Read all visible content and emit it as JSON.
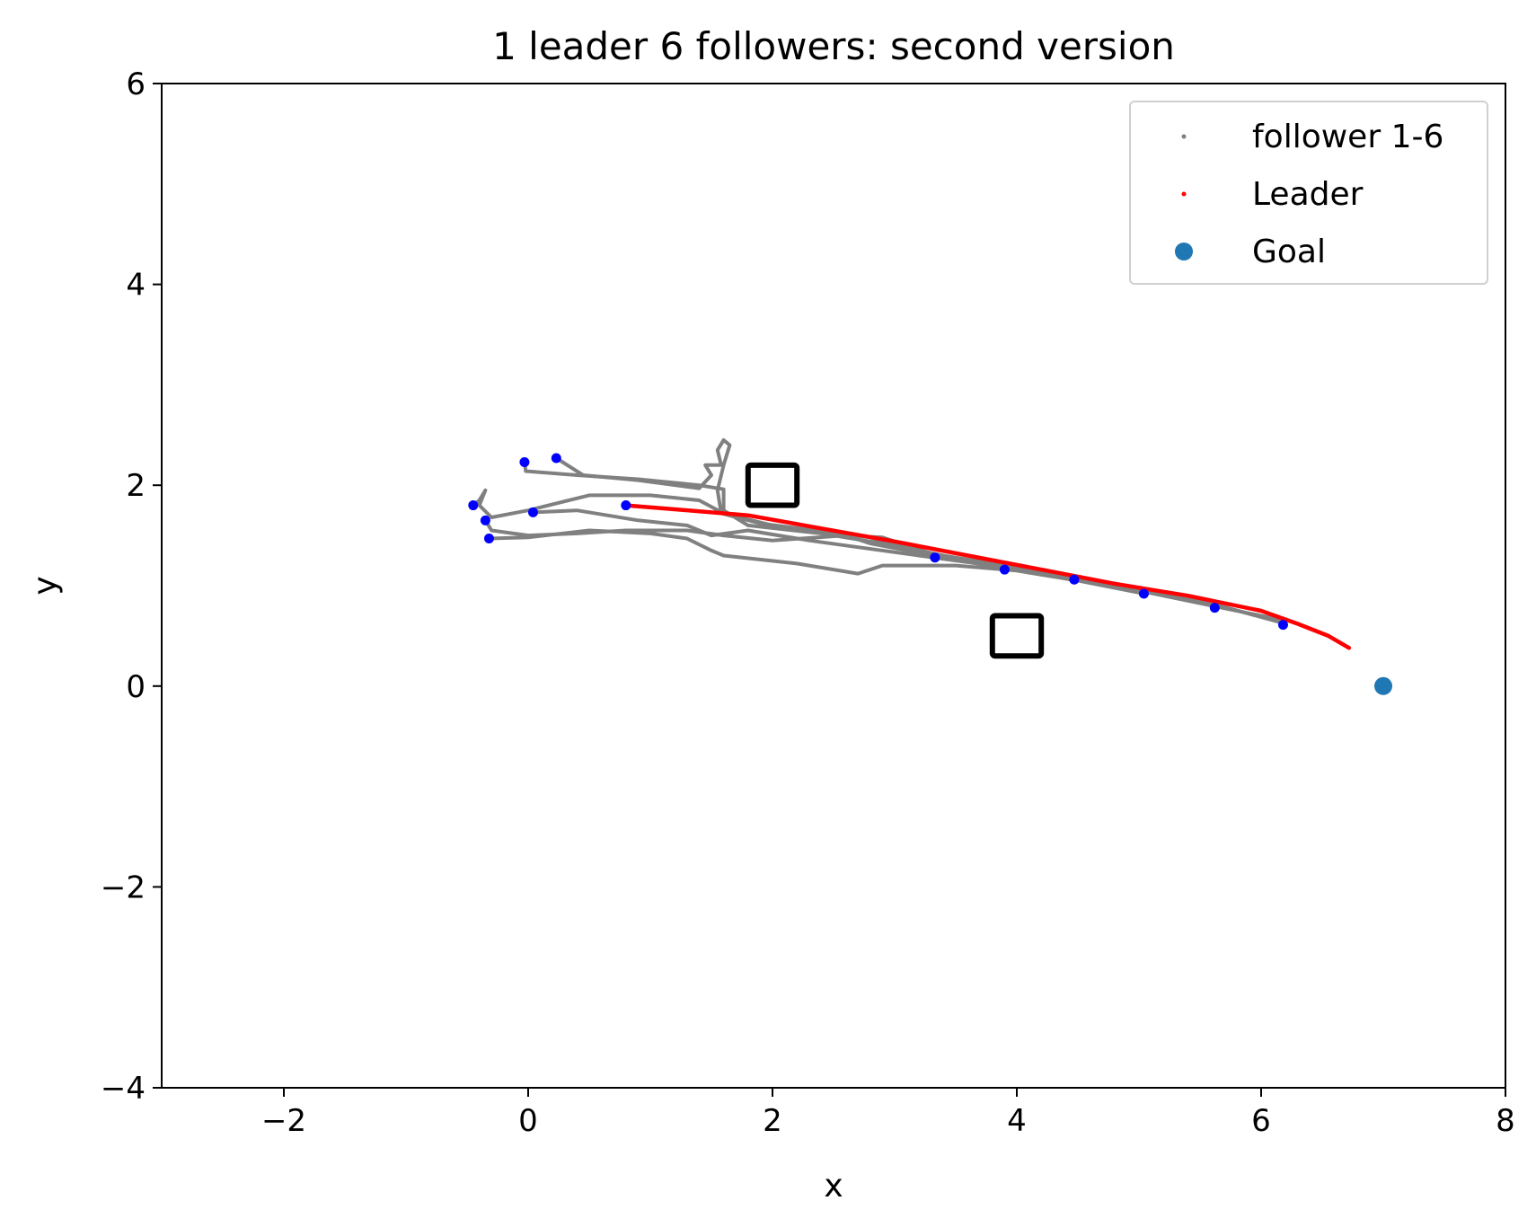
{
  "chart_data": {
    "type": "scatter",
    "title": "1 leader 6 followers: second version",
    "xlabel": "x",
    "ylabel": "y",
    "xlim": [
      -3,
      8
    ],
    "ylim": [
      -4,
      6
    ],
    "x_ticks": [
      -2,
      0,
      2,
      4,
      6,
      8
    ],
    "y_ticks": [
      -4,
      -2,
      0,
      2,
      4,
      6
    ],
    "x_tick_labels": [
      "−2",
      "0",
      "2",
      "4",
      "6",
      "8"
    ],
    "y_tick_labels": [
      "−4",
      "−2",
      "0",
      "2",
      "4",
      "6"
    ],
    "grid": false,
    "legend": {
      "position": "top-right",
      "entries": [
        {
          "label": "follower 1-6",
          "color": "#808080",
          "marker": "small-dot"
        },
        {
          "label": "Leader",
          "color": "#ff0000",
          "marker": "small-dot"
        },
        {
          "label": "Goal",
          "color": "#1f77b4",
          "marker": "circle"
        }
      ]
    },
    "series": [
      {
        "name": "Leader",
        "color": "#ff0000",
        "points": [
          [
            0.8,
            1.8
          ],
          [
            1.2,
            1.76
          ],
          [
            1.8,
            1.7
          ],
          [
            2.4,
            1.57
          ],
          [
            3.0,
            1.44
          ],
          [
            3.6,
            1.3
          ],
          [
            4.2,
            1.16
          ],
          [
            4.8,
            1.02
          ],
          [
            5.4,
            0.9
          ],
          [
            6.0,
            0.75
          ],
          [
            6.3,
            0.62
          ],
          [
            6.55,
            0.5
          ],
          [
            6.72,
            0.38
          ]
        ]
      },
      {
        "name": "follower 1-6",
        "color": "#808080",
        "paths": [
          [
            [
              -0.03,
              2.23
            ],
            [
              -0.02,
              2.14
            ],
            [
              0.4,
              2.1
            ],
            [
              0.9,
              2.06
            ],
            [
              1.4,
              2.0
            ],
            [
              1.6,
              1.96
            ],
            [
              1.6,
              1.75
            ],
            [
              1.8,
              1.6
            ],
            [
              2.4,
              1.52
            ],
            [
              3.0,
              1.4
            ],
            [
              3.4,
              1.3
            ],
            [
              3.9,
              1.2
            ],
            [
              4.5,
              1.08
            ],
            [
              5.0,
              0.95
            ],
            [
              5.6,
              0.8
            ],
            [
              6.2,
              0.65
            ]
          ],
          [
            [
              0.23,
              2.27
            ],
            [
              0.45,
              2.1
            ],
            [
              0.9,
              2.05
            ],
            [
              1.4,
              1.97
            ],
            [
              1.5,
              2.1
            ],
            [
              1.45,
              2.2
            ],
            [
              1.58,
              2.2
            ],
            [
              1.55,
              2.35
            ],
            [
              1.6,
              2.45
            ],
            [
              1.65,
              2.4
            ],
            [
              1.6,
              2.2
            ],
            [
              1.55,
              1.95
            ],
            [
              1.58,
              1.72
            ],
            [
              1.9,
              1.62
            ],
            [
              2.8,
              1.48
            ],
            [
              3.3,
              1.3
            ]
          ],
          [
            [
              -0.45,
              1.8
            ],
            [
              -0.4,
              1.85
            ],
            [
              -0.35,
              1.95
            ],
            [
              -0.4,
              1.8
            ],
            [
              -0.3,
              1.68
            ],
            [
              0.0,
              1.75
            ],
            [
              0.5,
              1.9
            ],
            [
              1.0,
              1.9
            ],
            [
              1.4,
              1.85
            ],
            [
              1.6,
              1.72
            ],
            [
              2.0,
              1.6
            ],
            [
              2.6,
              1.5
            ],
            [
              2.9,
              1.48
            ],
            [
              3.3,
              1.32
            ],
            [
              3.9,
              1.18
            ]
          ],
          [
            [
              -0.35,
              1.65
            ],
            [
              -0.3,
              1.55
            ],
            [
              0.0,
              1.5
            ],
            [
              0.4,
              1.52
            ],
            [
              0.8,
              1.55
            ],
            [
              1.3,
              1.55
            ],
            [
              1.6,
              1.5
            ],
            [
              2.0,
              1.45
            ],
            [
              2.6,
              1.5
            ],
            [
              2.8,
              1.42
            ],
            [
              3.4,
              1.28
            ],
            [
              3.9,
              1.17
            ],
            [
              4.5,
              1.05
            ]
          ],
          [
            [
              -0.32,
              1.47
            ],
            [
              0.0,
              1.48
            ],
            [
              0.5,
              1.55
            ],
            [
              1.0,
              1.52
            ],
            [
              1.3,
              1.47
            ],
            [
              1.5,
              1.35
            ],
            [
              1.6,
              1.3
            ],
            [
              2.2,
              1.22
            ],
            [
              2.7,
              1.12
            ],
            [
              2.9,
              1.2
            ],
            [
              3.5,
              1.2
            ],
            [
              4.0,
              1.15
            ],
            [
              4.5,
              1.05
            ],
            [
              5.0,
              0.93
            ]
          ],
          [
            [
              0.04,
              1.73
            ],
            [
              0.4,
              1.75
            ],
            [
              0.9,
              1.65
            ],
            [
              1.3,
              1.6
            ],
            [
              1.5,
              1.5
            ],
            [
              1.8,
              1.55
            ],
            [
              2.3,
              1.45
            ],
            [
              2.6,
              1.4
            ],
            [
              3.2,
              1.3
            ],
            [
              3.8,
              1.2
            ],
            [
              4.4,
              1.08
            ],
            [
              5.0,
              0.95
            ],
            [
              5.6,
              0.82
            ],
            [
              6.2,
              0.62
            ]
          ]
        ]
      },
      {
        "name": "Goal",
        "color": "#1f77b4",
        "points": [
          [
            7.0,
            0.0
          ]
        ]
      }
    ],
    "agent_positions": {
      "color": "#0000ff",
      "points": [
        [
          -0.03,
          2.23
        ],
        [
          0.23,
          2.27
        ],
        [
          -0.45,
          1.8
        ],
        [
          -0.35,
          1.65
        ],
        [
          -0.32,
          1.47
        ],
        [
          0.04,
          1.73
        ],
        [
          0.8,
          1.8
        ],
        [
          3.33,
          1.28
        ],
        [
          3.9,
          1.16
        ],
        [
          4.47,
          1.06
        ],
        [
          5.04,
          0.92
        ],
        [
          5.62,
          0.78
        ],
        [
          6.18,
          0.61
        ]
      ]
    },
    "obstacles": [
      {
        "x": [
          1.8,
          2.2
        ],
        "y": [
          1.8,
          2.2
        ]
      },
      {
        "x": [
          3.8,
          4.2
        ],
        "y": [
          0.3,
          0.7
        ]
      }
    ]
  }
}
